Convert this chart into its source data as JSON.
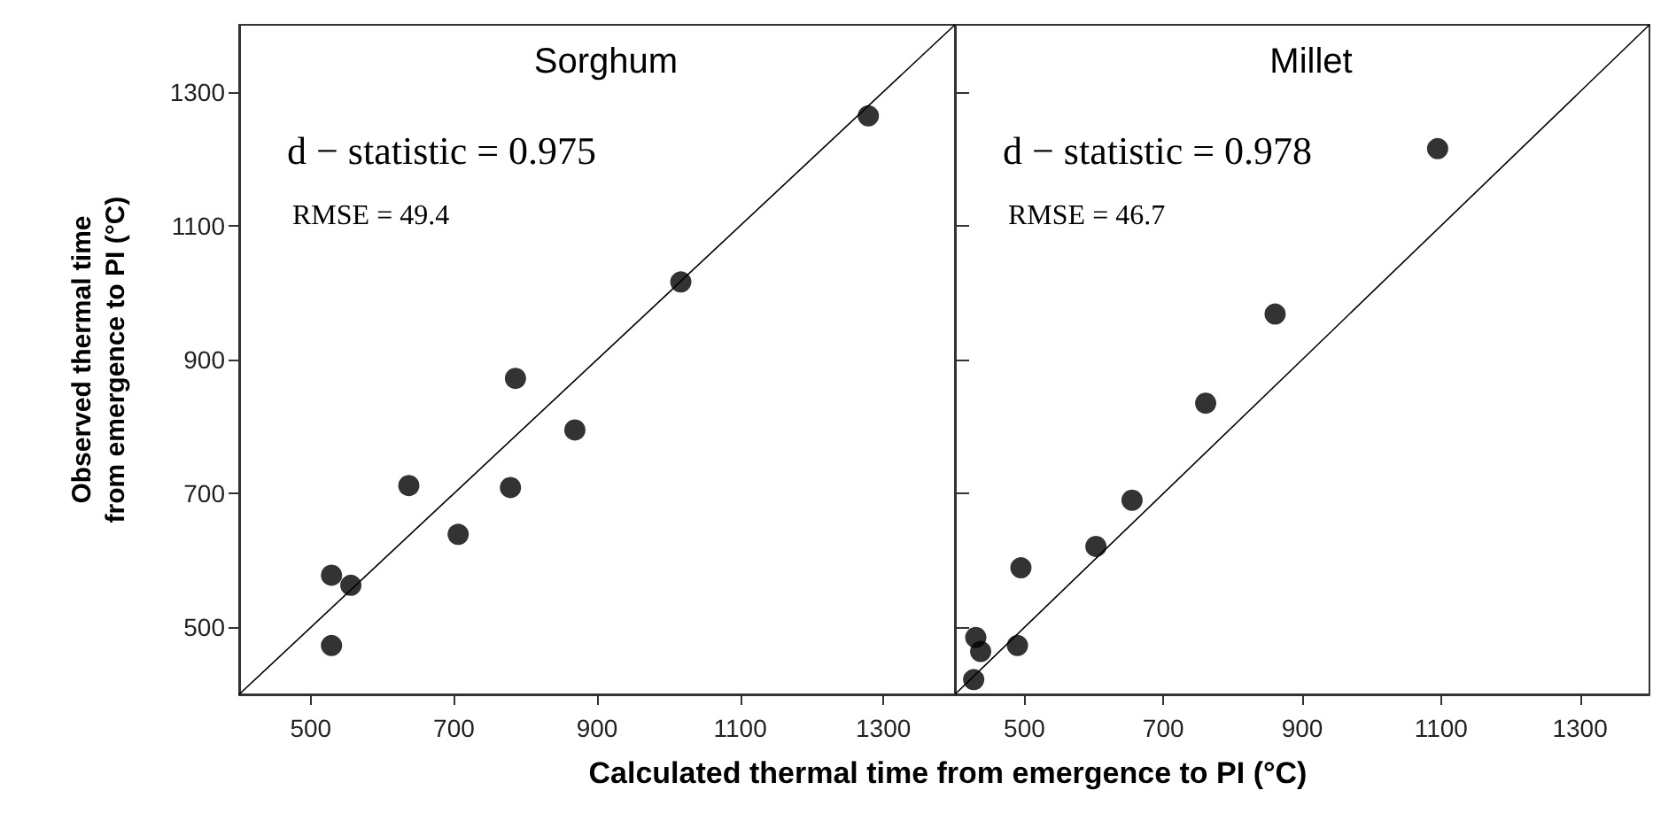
{
  "chart_data": [
    {
      "type": "scatter",
      "title": "Sorghum",
      "xlabel": "Calculated thermal time from emergence to PI (°C)",
      "ylabel": "Observed thermal time from emergence to PI (°C)",
      "annotations": [
        "d − statistic = 0.975",
        "RMSE = 49.4"
      ],
      "series": [
        {
          "x": [
            529,
            529,
            556,
            637,
            706,
            779,
            786,
            869,
            1017,
            1279
          ],
          "values": [
            473,
            578,
            563,
            712,
            639,
            709,
            872,
            795,
            1016,
            1264
          ],
          "color": "#000000"
        },
        {
          "type": "line",
          "marker": "none",
          "x": [
            400,
            1400
          ],
          "values": [
            400,
            1400
          ],
          "color": "#000000"
        }
      ],
      "xlim": [
        400,
        1400
      ],
      "ylim": [
        400,
        1400
      ],
      "xticks": [
        500,
        700,
        900,
        1100,
        1300
      ],
      "yticks": [
        500,
        700,
        900,
        1100,
        1300
      ],
      "grid": false,
      "marker": "circle"
    },
    {
      "type": "scatter",
      "title": "Millet",
      "annotations": [
        "d − statistic = 0.978",
        "RMSE = 46.7"
      ],
      "series": [
        {
          "x": [
            1095,
            861,
            761,
            655,
            603,
            495,
            490,
            430,
            437,
            427
          ],
          "values": [
            1215,
            968,
            835,
            690,
            621,
            589,
            473,
            485,
            464,
            422
          ],
          "color": "#000000"
        },
        {
          "type": "line",
          "marker": "none",
          "x": [
            400,
            1400
          ],
          "values": [
            400,
            1400
          ],
          "color": "#000000"
        }
      ],
      "xlim": [
        400,
        1400
      ],
      "ylim": [
        400,
        1400
      ],
      "xticks": [
        500,
        700,
        900,
        1100,
        1300
      ],
      "yticks": [
        500,
        700,
        900,
        1100,
        1300
      ],
      "grid": false,
      "marker": "circle",
      "tick_labels": "x"
    }
  ]
}
